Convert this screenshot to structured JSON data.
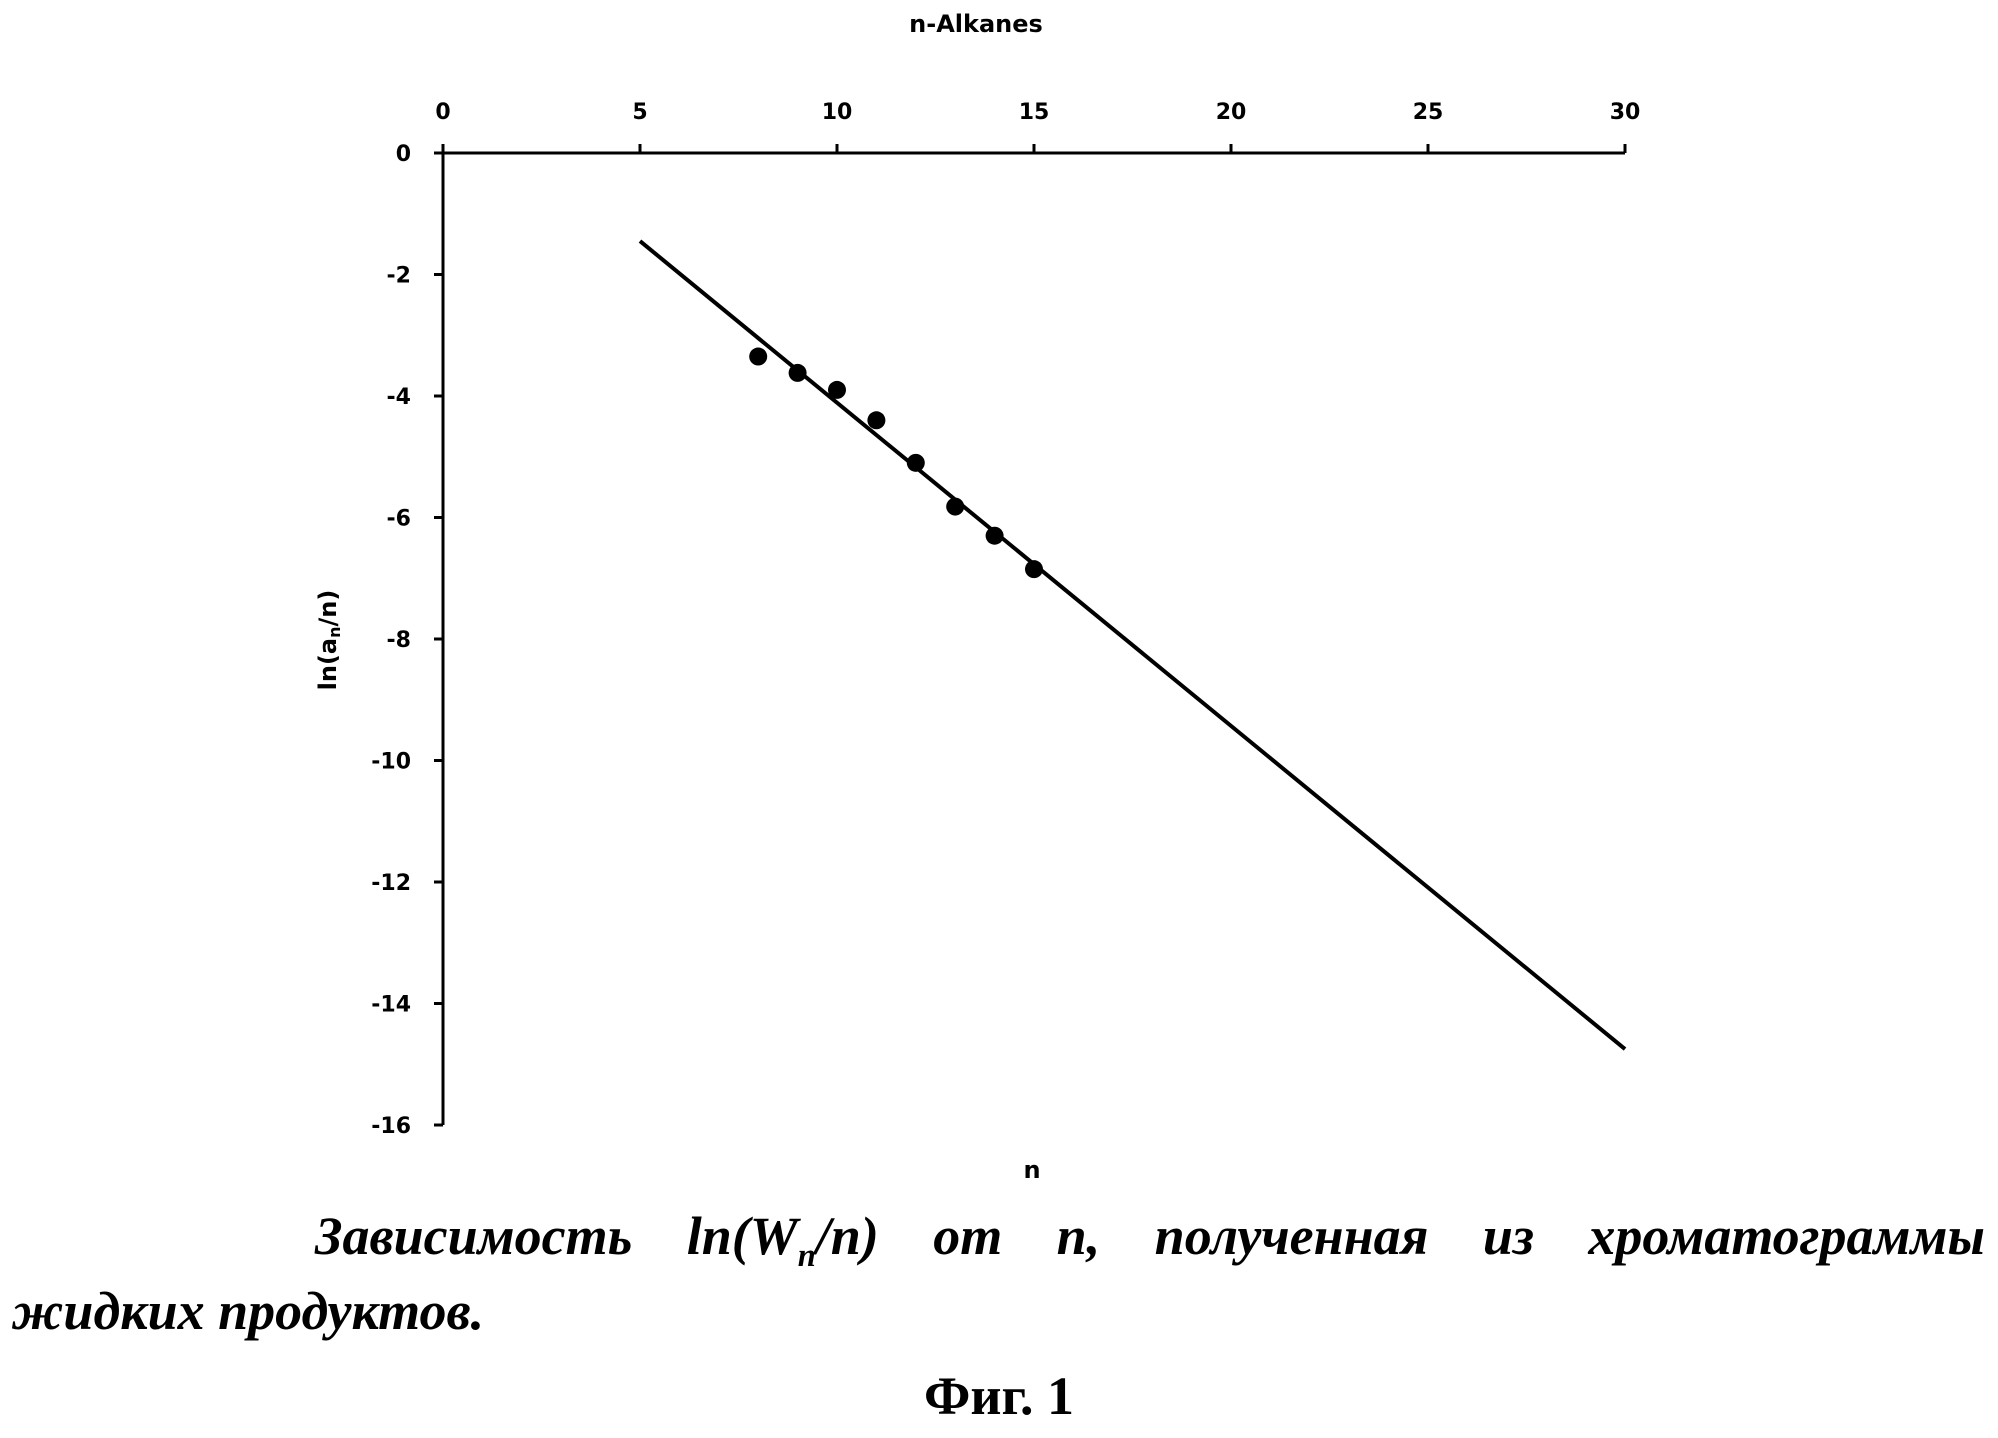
{
  "chart_data": {
    "type": "scatter",
    "title": "n-Alkanes",
    "xlabel": "n",
    "ylabel": "ln(a_n/n)",
    "ylabel_main": "ln(a",
    "ylabel_sub": "n",
    "ylabel_end": "/n)",
    "x_axis_position": "top",
    "xlim": [
      0,
      30
    ],
    "ylim": [
      -16,
      0
    ],
    "x_ticks": [
      0,
      5,
      10,
      15,
      20,
      25,
      30
    ],
    "y_ticks": [
      0,
      -2,
      -4,
      -6,
      -8,
      -10,
      -12,
      -14,
      -16
    ],
    "x_tick_labels": [
      "0",
      "5",
      "10",
      "15",
      "20",
      "25",
      "30"
    ],
    "y_tick_labels": [
      "0",
      "-2",
      "-4",
      "-6",
      "-8",
      "-10",
      "-12",
      "-14",
      "-16"
    ],
    "grid": false,
    "series": [
      {
        "kind": "points",
        "x": [
          8,
          9,
          10,
          11,
          12,
          13,
          14,
          15
        ],
        "y": [
          -3.35,
          -3.62,
          -3.9,
          -4.4,
          -5.1,
          -5.82,
          -6.3,
          -6.85
        ]
      },
      {
        "kind": "trendline",
        "x": [
          5,
          30
        ],
        "y": [
          -1.45,
          -14.75
        ]
      }
    ],
    "colors": {
      "points": "#000000",
      "line": "#000000"
    }
  },
  "caption": {
    "line1_a": "Зависимость ln(W",
    "line1_sub": "n",
    "line1_b": "/n) от n, полученная из хроматограммы",
    "line2": "жидких продуктов."
  },
  "figure_label": "Фиг. 1"
}
